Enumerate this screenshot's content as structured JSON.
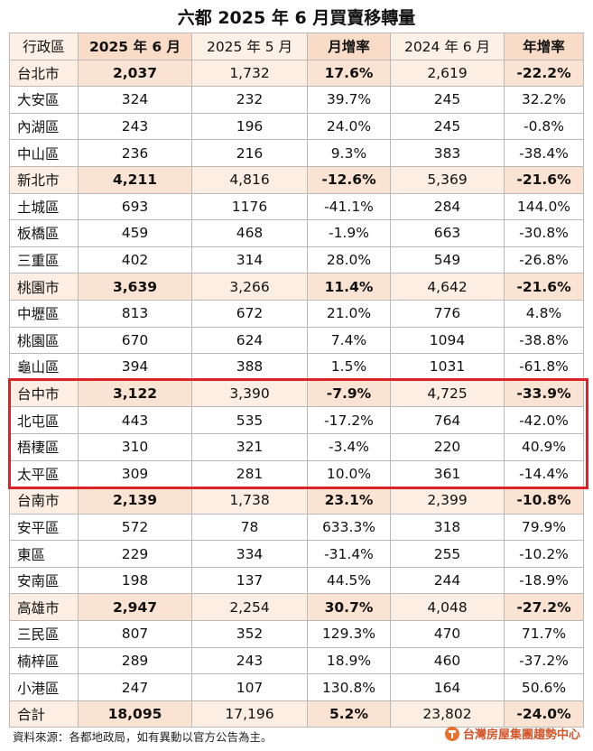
{
  "title": "六都 2025 年 6 月買賣移轉量",
  "headers": [
    "行政區",
    "2025 年 6 月",
    "2025 年 5 月",
    "月增率",
    "2024 年 6 月",
    "年增率"
  ],
  "rows": [
    {
      "type": "city",
      "cells": [
        "台北市",
        "2,037",
        "1,732",
        "17.6%",
        "2,619",
        "-22.2%"
      ]
    },
    {
      "type": "dist",
      "cells": [
        "大安區",
        "324",
        "232",
        "39.7%",
        "245",
        "32.2%"
      ]
    },
    {
      "type": "dist",
      "cells": [
        "內湖區",
        "243",
        "196",
        "24.0%",
        "245",
        "-0.8%"
      ]
    },
    {
      "type": "dist",
      "cells": [
        "中山區",
        "236",
        "216",
        "9.3%",
        "383",
        "-38.4%"
      ]
    },
    {
      "type": "city",
      "cells": [
        "新北市",
        "4,211",
        "4,816",
        "-12.6%",
        "5,369",
        "-21.6%"
      ]
    },
    {
      "type": "dist",
      "cells": [
        "土城區",
        "693",
        "1176",
        "-41.1%",
        "284",
        "144.0%"
      ]
    },
    {
      "type": "dist",
      "cells": [
        "板橋區",
        "459",
        "468",
        "-1.9%",
        "663",
        "-30.8%"
      ]
    },
    {
      "type": "dist",
      "cells": [
        "三重區",
        "402",
        "314",
        "28.0%",
        "549",
        "-26.8%"
      ]
    },
    {
      "type": "city",
      "cells": [
        "桃園市",
        "3,639",
        "3,266",
        "11.4%",
        "4,642",
        "-21.6%"
      ]
    },
    {
      "type": "dist",
      "cells": [
        "中壢區",
        "813",
        "672",
        "21.0%",
        "776",
        "4.8%"
      ]
    },
    {
      "type": "dist",
      "cells": [
        "桃園區",
        "670",
        "624",
        "7.4%",
        "1094",
        "-38.8%"
      ]
    },
    {
      "type": "dist",
      "cells": [
        "龜山區",
        "394",
        "388",
        "1.5%",
        "1031",
        "-61.8%"
      ]
    },
    {
      "type": "city",
      "cells": [
        "台中市",
        "3,122",
        "3,390",
        "-7.9%",
        "4,725",
        "-33.9%"
      ]
    },
    {
      "type": "dist",
      "cells": [
        "北屯區",
        "443",
        "535",
        "-17.2%",
        "764",
        "-42.0%"
      ]
    },
    {
      "type": "dist",
      "cells": [
        "梧棲區",
        "310",
        "321",
        "-3.4%",
        "220",
        "40.9%"
      ]
    },
    {
      "type": "dist",
      "cells": [
        "太平區",
        "309",
        "281",
        "10.0%",
        "361",
        "-14.4%"
      ]
    },
    {
      "type": "city",
      "cells": [
        "台南市",
        "2,139",
        "1,738",
        "23.1%",
        "2,399",
        "-10.8%"
      ]
    },
    {
      "type": "dist",
      "cells": [
        "安平區",
        "572",
        "78",
        "633.3%",
        "318",
        "79.9%"
      ]
    },
    {
      "type": "dist",
      "cells": [
        "東區",
        "229",
        "334",
        "-31.4%",
        "255",
        "-10.2%"
      ]
    },
    {
      "type": "dist",
      "cells": [
        "安南區",
        "198",
        "137",
        "44.5%",
        "244",
        "-18.9%"
      ]
    },
    {
      "type": "city",
      "cells": [
        "高雄市",
        "2,947",
        "2,254",
        "30.7%",
        "4,048",
        "-27.2%"
      ]
    },
    {
      "type": "dist",
      "cells": [
        "三民區",
        "807",
        "352",
        "129.3%",
        "470",
        "71.7%"
      ]
    },
    {
      "type": "dist",
      "cells": [
        "楠梓區",
        "289",
        "243",
        "18.9%",
        "460",
        "-37.2%"
      ]
    },
    {
      "type": "dist",
      "cells": [
        "小港區",
        "247",
        "107",
        "130.8%",
        "164",
        "50.6%"
      ]
    },
    {
      "type": "city",
      "cells": [
        "合計",
        "18,095",
        "17,196",
        "5.2%",
        "23,802",
        "-24.0%"
      ]
    }
  ],
  "highlight_city": "台中市",
  "source": "資料來源：各都地政局，如有異動以官方公告為主。",
  "logo_text": "台灣房屋集團趨勢中心",
  "colors": {
    "header_dark": "#f9dcc7",
    "header_light": "#fdf0e6",
    "highlight_border": "#d9252a",
    "logo": "#d4562b"
  }
}
